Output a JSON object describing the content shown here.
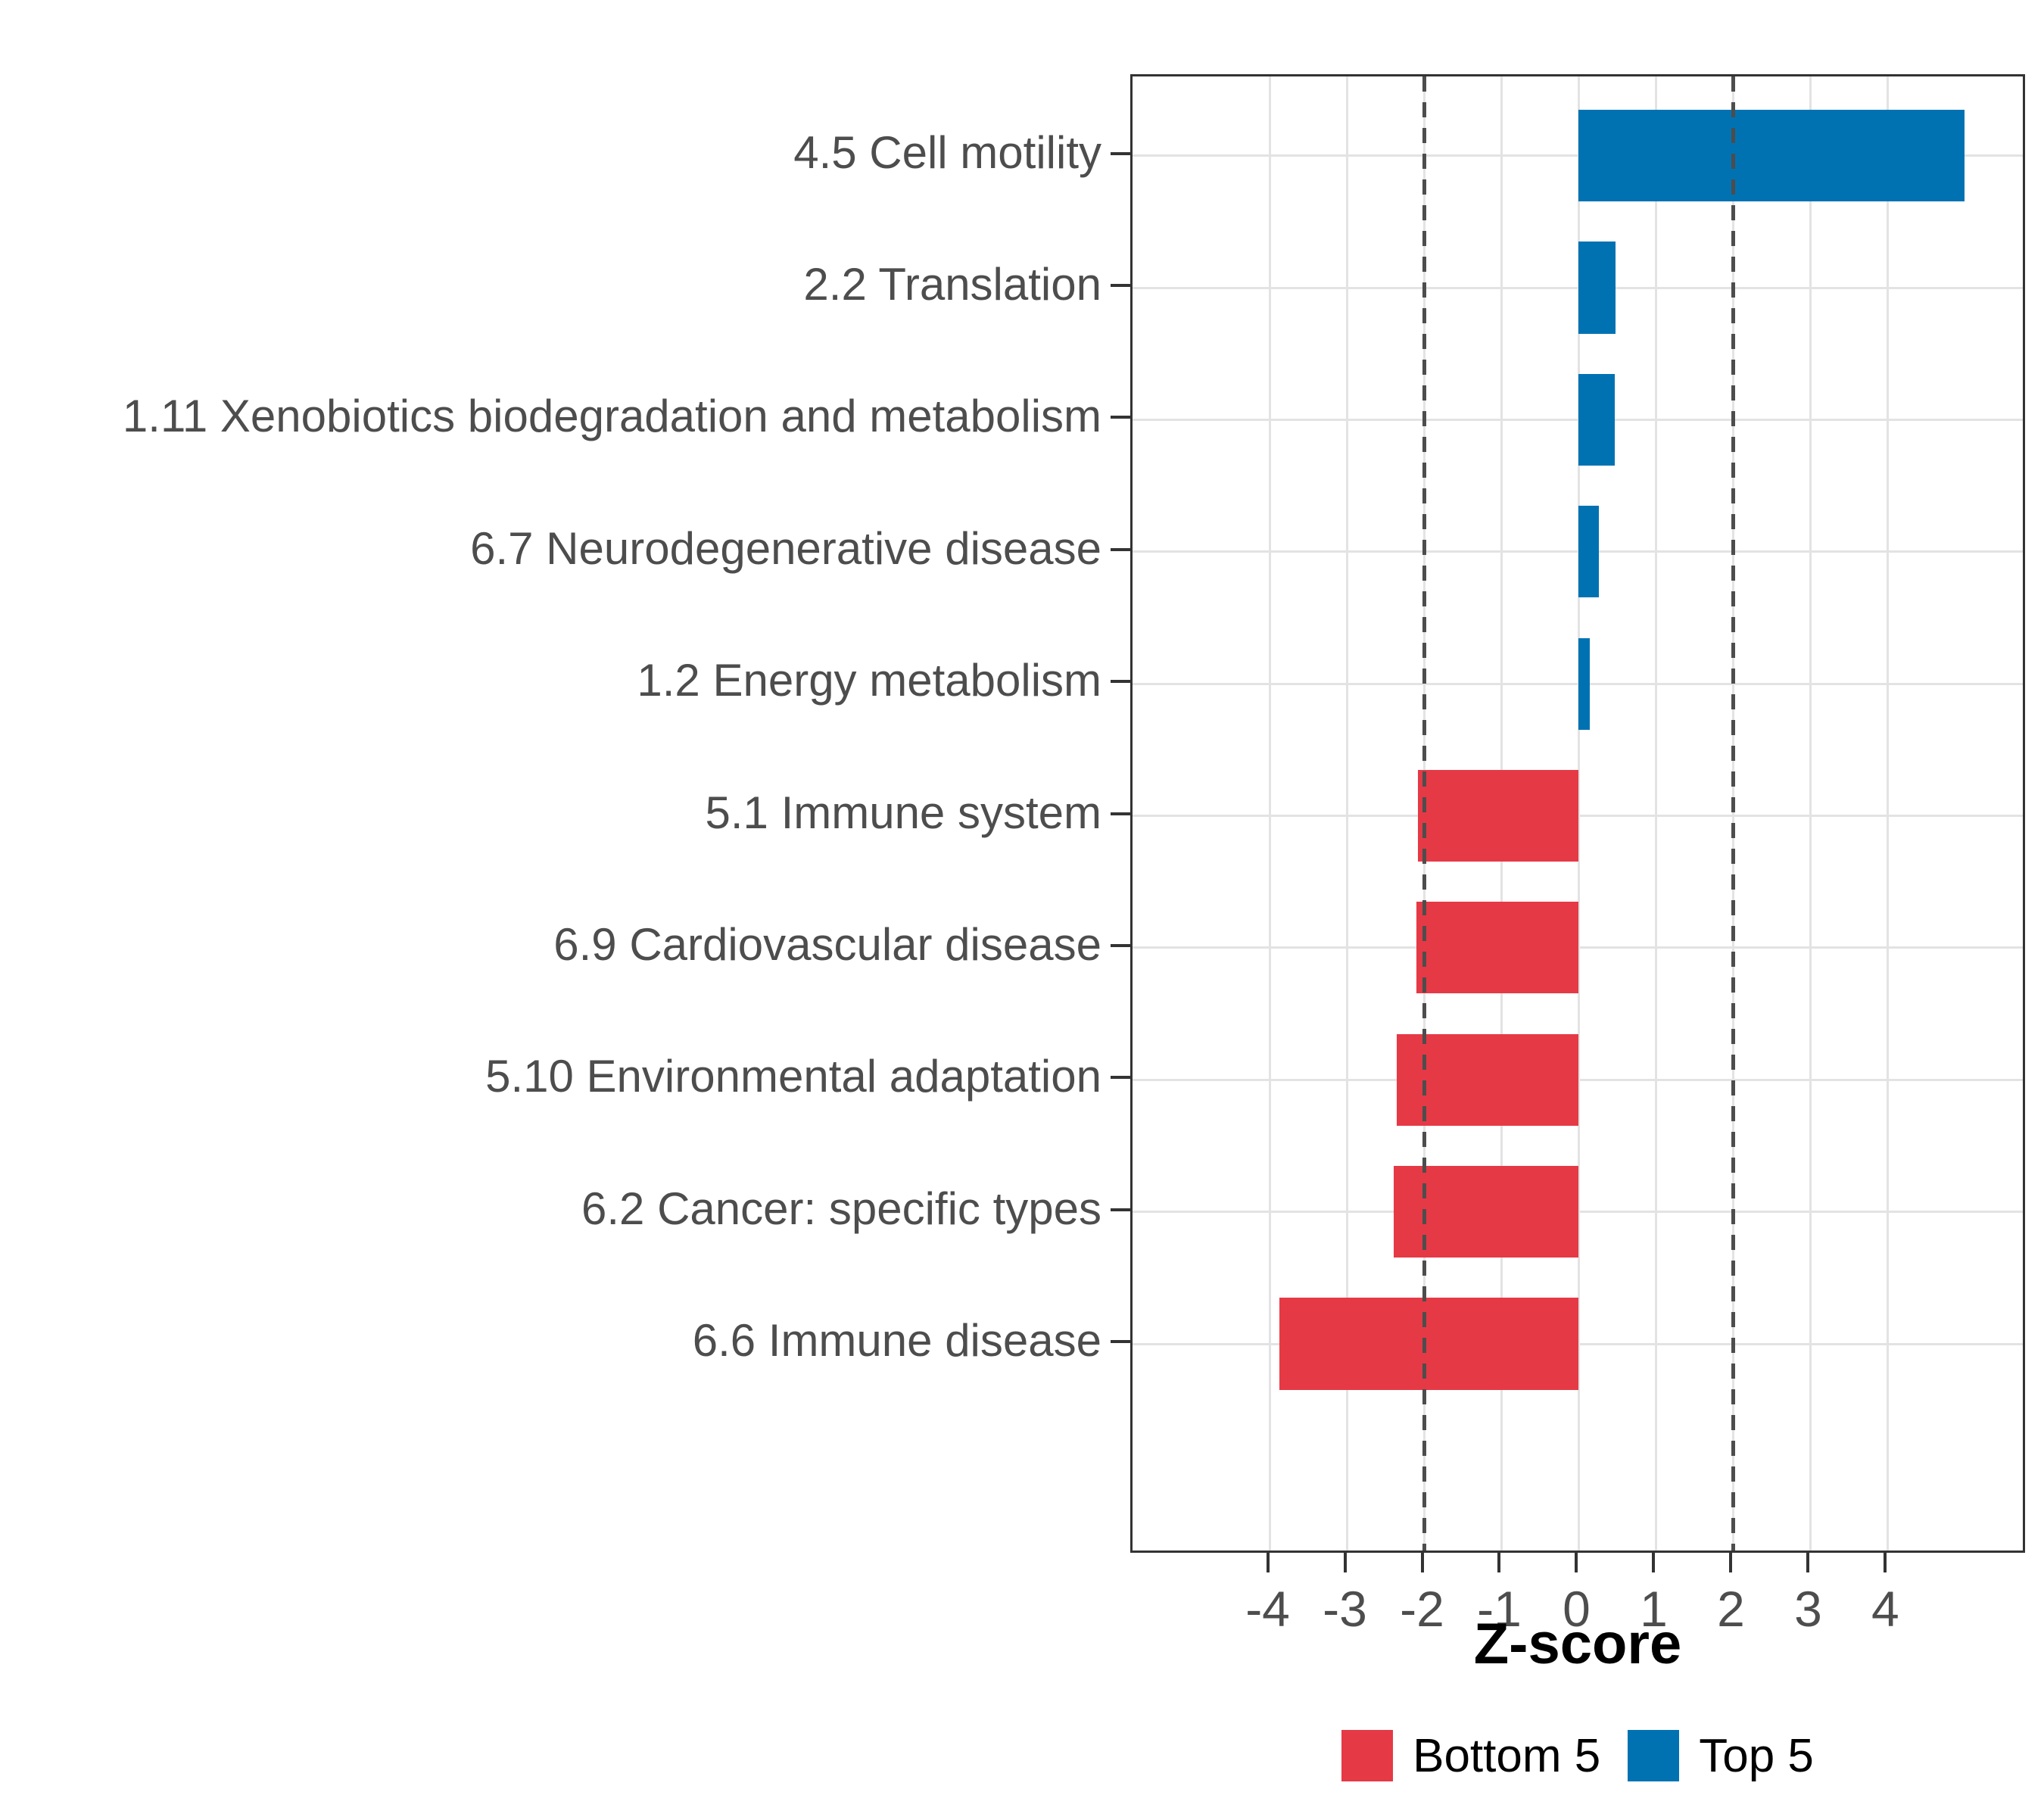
{
  "chart_data": {
    "type": "bar",
    "orientation": "horizontal",
    "xlabel": "Z-score",
    "categories": [
      "4.5 Cell motility",
      "2.2 Translation",
      "1.11 Xenobiotics biodegradation and metabolism",
      "6.7 Neurodegenerative disease",
      "1.2 Energy metabolism",
      "5.1 Immune system",
      "6.9 Cardiovascular disease",
      "5.10 Environmental adaptation",
      "6.2 Cancer: specific types",
      "6.6 Immune disease"
    ],
    "values": [
      5.0,
      0.48,
      0.47,
      0.26,
      0.14,
      -2.08,
      -2.1,
      -2.36,
      -2.4,
      -3.88
    ],
    "x_ticks": [
      -4,
      -3,
      -2,
      -1,
      0,
      1,
      2,
      3,
      4
    ],
    "xlim": [
      -5.78,
      5.81
    ],
    "guides": [
      -2,
      2
    ],
    "grid": true,
    "colors": {
      "positive": "#0072B2",
      "negative": "#E63946",
      "gridline": "#e3e3e3",
      "guide": "#4d4d4d",
      "axis_text": "#4d4d4d"
    },
    "legend": {
      "position": "bottom",
      "entries": [
        {
          "label": "Bottom 5",
          "color": "#E63946"
        },
        {
          "label": "Top 5",
          "color": "#0072B2"
        }
      ]
    }
  }
}
